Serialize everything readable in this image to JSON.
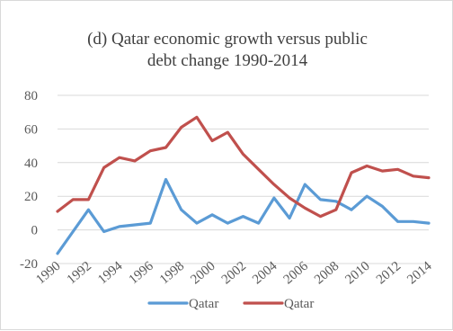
{
  "chart_data": {
    "type": "line",
    "title": "(d) Qatar economic growth versus public debt change 1990-2014",
    "title_lines": [
      "(d) Qatar economic growth versus public",
      "debt change 1990-2014"
    ],
    "xlabel": "",
    "ylabel": "",
    "ylim": [
      -20,
      80
    ],
    "yticks": [
      -20,
      0,
      20,
      40,
      60,
      80
    ],
    "ytick_labels": [
      "-20",
      "0",
      "20",
      "40",
      "60",
      "80"
    ],
    "x": [
      1990,
      1991,
      1992,
      1993,
      1994,
      1995,
      1996,
      1997,
      1998,
      1999,
      2000,
      2001,
      2002,
      2003,
      2004,
      2005,
      2006,
      2007,
      2008,
      2009,
      2010,
      2011,
      2012,
      2013,
      2014
    ],
    "xtick_labels": [
      "1990",
      "1992",
      "1994",
      "1996",
      "1998",
      "2000",
      "2002",
      "2004",
      "2006",
      "2008",
      "2010",
      "2012",
      "2014"
    ],
    "grid": true,
    "legend_position": "bottom",
    "series": [
      {
        "name": "Qatar",
        "color": "#5b9bd5",
        "values": [
          -14,
          -1,
          12,
          -1,
          2,
          3,
          4,
          30,
          12,
          4,
          9,
          4,
          8,
          4,
          19,
          7,
          27,
          18,
          17,
          12,
          20,
          14,
          5,
          5,
          4
        ]
      },
      {
        "name": "Qatar",
        "color": "#c0504d",
        "values": [
          11,
          18,
          18,
          37,
          43,
          41,
          47,
          49,
          61,
          67,
          53,
          58,
          45,
          36,
          27,
          19,
          13,
          8,
          12,
          34,
          38,
          35,
          36,
          32,
          31
        ]
      }
    ]
  }
}
